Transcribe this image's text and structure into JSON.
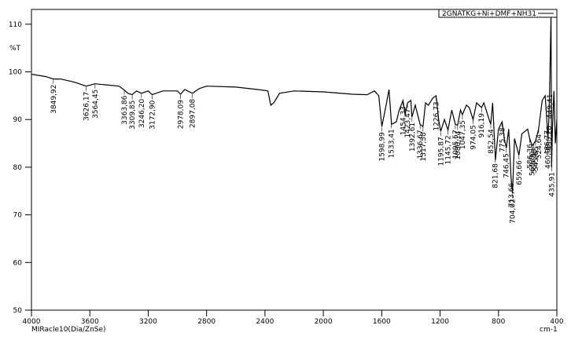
{
  "chart_data": {
    "type": "line",
    "y_label": "%T",
    "x_label": "cm-1",
    "instrument": "MIRacle10(Dia/ZnSe)",
    "xlim": [
      4000,
      400
    ],
    "xticks": [
      4000,
      3600,
      3200,
      2800,
      2400,
      2000,
      1600,
      1200,
      800,
      400
    ],
    "ylim": [
      50,
      113.1
    ],
    "yticks": [
      50,
      60,
      70,
      80,
      90,
      100,
      110
    ],
    "x": [
      4000,
      3900,
      3850,
      3800,
      3700,
      3626,
      3564,
      3500,
      3400,
      3364,
      3340,
      3310,
      3280,
      3246,
      3200,
      3173,
      3100,
      3000,
      2978,
      2950,
      2897,
      2850,
      2800,
      2600,
      2450,
      2380,
      2360,
      2340,
      2320,
      2300,
      2200,
      2000,
      1800,
      1700,
      1650,
      1620,
      1599,
      1570,
      1550,
      1533,
      1500,
      1480,
      1454,
      1440,
      1423,
      1400,
      1393,
      1370,
      1337,
      1317,
      1300,
      1280,
      1250,
      1227,
      1210,
      1196,
      1170,
      1146,
      1120,
      1096,
      1080,
      1060,
      1047,
      1020,
      1000,
      974,
      950,
      916,
      900,
      853,
      840,
      821,
      800,
      775,
      760,
      746,
      730,
      714,
      704,
      690,
      660,
      640,
      600,
      586,
      569,
      557,
      546,
      525,
      500,
      480,
      467,
      461,
      455,
      449,
      440,
      436,
      430,
      420,
      410,
      400
    ],
    "series": [
      {
        "name": "2GNATKG+Ni+DMF+NH31",
        "color": "#000000",
        "values": [
          99.5,
          99,
          98.5,
          98.5,
          97.8,
          97,
          97.5,
          97.3,
          97,
          96.2,
          95.5,
          95.2,
          96,
          95.5,
          96,
          95.2,
          96,
          96,
          95.3,
          96.3,
          95.5,
          96.5,
          97,
          96.8,
          96.3,
          96,
          93,
          93.5,
          94.5,
          95.5,
          96,
          95.8,
          95.3,
          95.2,
          96,
          95,
          88.5,
          93,
          96.3,
          89,
          89.5,
          92,
          94,
          91,
          93.5,
          94,
          90.5,
          93,
          89,
          88.5,
          93.5,
          93,
          94.5,
          95,
          90,
          87.5,
          90,
          87.8,
          92,
          89,
          88.8,
          92,
          91,
          93,
          92.5,
          90,
          93.5,
          92.5,
          93.5,
          89,
          93.5,
          81.5,
          88,
          89.5,
          86,
          84,
          88,
          78,
          74.5,
          86,
          82.5,
          87,
          88,
          86,
          84.5,
          85,
          85.5,
          88,
          94,
          95,
          89,
          86,
          90,
          97,
          112,
          80,
          88,
          96,
          85,
          90
        ]
      }
    ],
    "peaks": [
      {
        "value": 3849.92,
        "label": "3849,92"
      },
      {
        "value": 3626.17,
        "label": "3626,17"
      },
      {
        "value": 3564.45,
        "label": "3564,45"
      },
      {
        "value": 3363.86,
        "label": "3363,86"
      },
      {
        "value": 3309.85,
        "label": "3309,85"
      },
      {
        "value": 3246.2,
        "label": "3246,20"
      },
      {
        "value": 3172.9,
        "label": "3172,90"
      },
      {
        "value": 2978.09,
        "label": "2978,09"
      },
      {
        "value": 2897.08,
        "label": "2897,08"
      },
      {
        "value": 1598.99,
        "label": "1598,99"
      },
      {
        "value": 1533.41,
        "label": "1533,41"
      },
      {
        "value": 1454.33,
        "label": "1454,33"
      },
      {
        "value": 1423.47,
        "label": "1423,47"
      },
      {
        "value": 1392.61,
        "label": "1392,61"
      },
      {
        "value": 1336.67,
        "label": "1336,67"
      },
      {
        "value": 1317.38,
        "label": "1317,38"
      },
      {
        "value": 1226.73,
        "label": "1226,73"
      },
      {
        "value": 1195.87,
        "label": "1195,87"
      },
      {
        "value": 1145.72,
        "label": "1145,72"
      },
      {
        "value": 1095.57,
        "label": "1095,57"
      },
      {
        "value": 1080.14,
        "label": "1080,14"
      },
      {
        "value": 1047.35,
        "label": "1047,35"
      },
      {
        "value": 974.05,
        "label": "974,05"
      },
      {
        "value": 916.19,
        "label": "916,19"
      },
      {
        "value": 852.54,
        "label": "852,54"
      },
      {
        "value": 821.68,
        "label": "821,68"
      },
      {
        "value": 775.38,
        "label": "775,38"
      },
      {
        "value": 746.45,
        "label": "746,45"
      },
      {
        "value": 713.66,
        "label": "713,66"
      },
      {
        "value": 704.02,
        "label": "704,02"
      },
      {
        "value": 659.66,
        "label": "659,66"
      },
      {
        "value": 586.36,
        "label": "586,36"
      },
      {
        "value": 569.0,
        "label": "569,00"
      },
      {
        "value": 557.43,
        "label": "557,43"
      },
      {
        "value": 545.85,
        "label": "545,85"
      },
      {
        "value": 524.64,
        "label": "524,64"
      },
      {
        "value": 466.77,
        "label": "466,77"
      },
      {
        "value": 460.99,
        "label": "460,99"
      },
      {
        "value": 455.2,
        "label": "455,20"
      },
      {
        "value": 449.41,
        "label": "449,41"
      },
      {
        "value": 435.91,
        "label": "435,91"
      }
    ]
  }
}
